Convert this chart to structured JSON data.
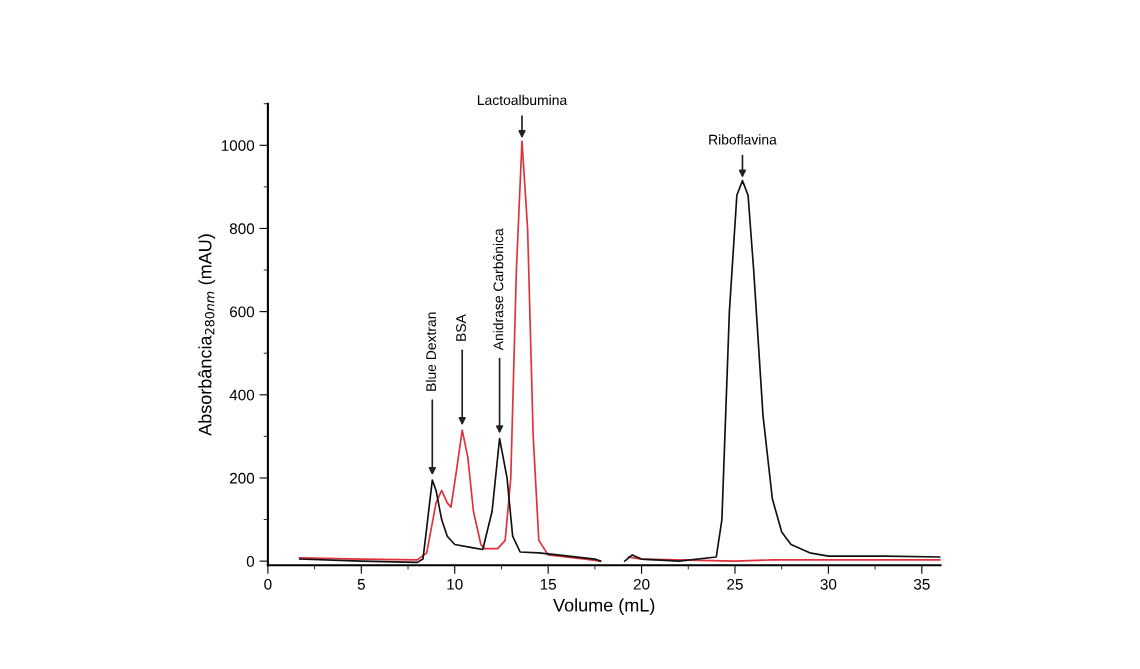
{
  "chart_data": {
    "type": "line",
    "xlabel": "Volume (mL)",
    "ylabel": "Absorbância$_{280nm}$ (mAU)",
    "xlim": [
      0,
      36
    ],
    "xticks": [
      0,
      5,
      10,
      15,
      20,
      25,
      30,
      35
    ],
    "ylim": [
      -10,
      1100
    ],
    "yticks": [
      0,
      200,
      400,
      600,
      800,
      1000
    ],
    "grid": false,
    "legend": false,
    "marker": "none",
    "line_style": "solid",
    "series": [
      {
        "color": "#e0303a",
        "x": [
          1.7,
          5,
          8,
          8.5,
          9.0,
          9.3,
          9.6,
          9.8,
          10.1,
          10.4,
          10.7,
          11,
          11.4,
          11.6,
          12.3,
          12.7,
          13,
          13.3,
          13.6,
          13.9,
          14.2,
          14.5,
          15,
          17,
          17.8,
          18.5,
          19.3,
          20,
          25,
          27,
          36
        ],
        "values": [
          8,
          5,
          3,
          20,
          140,
          170,
          140,
          130,
          220,
          315,
          250,
          120,
          40,
          30,
          30,
          50,
          200,
          700,
          1010,
          800,
          300,
          50,
          15,
          5,
          0,
          null,
          10,
          5,
          0,
          3,
          3
        ]
      },
      {
        "color": "#111111",
        "x": [
          1.7,
          5,
          8,
          8.3,
          8.5,
          8.8,
          9.0,
          9.3,
          9.6,
          10,
          11,
          11.5,
          12,
          12.4,
          12.8,
          13.1,
          13.5,
          14.5,
          15.5,
          17.5,
          17.8,
          18.5,
          19.1,
          19.5,
          20,
          22,
          24,
          24.3,
          24.7,
          25.1,
          25.4,
          25.7,
          26,
          26.5,
          27,
          27.5,
          28,
          29,
          30,
          33,
          36
        ],
        "values": [
          5,
          0,
          -3,
          5,
          80,
          195,
          170,
          100,
          60,
          40,
          32,
          28,
          120,
          295,
          200,
          60,
          22,
          20,
          15,
          5,
          0,
          null,
          0,
          15,
          5,
          0,
          10,
          100,
          600,
          880,
          915,
          880,
          700,
          350,
          150,
          70,
          40,
          20,
          12,
          12,
          10
        ]
      }
    ],
    "annotations": [
      {
        "text": "Blue Dextran",
        "x": 8.8,
        "y": 200
      },
      {
        "text": "BSA",
        "x": 10.4,
        "y": 320
      },
      {
        "text": "Anidrase Carbônica",
        "x": 12.4,
        "y": 300
      },
      {
        "text": "Lactoalbumina",
        "x": 13.6,
        "y": 1010
      },
      {
        "text": "Riboflavina",
        "x": 25.4,
        "y": 915
      }
    ]
  }
}
